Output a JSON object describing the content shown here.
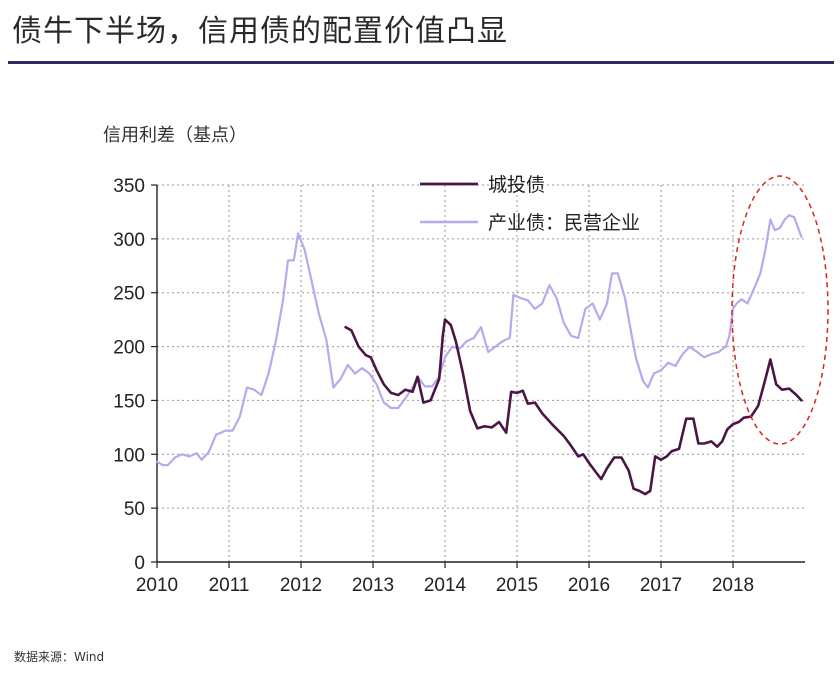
{
  "page": {
    "title": "债牛下半场，信用债的配置价值凸显",
    "source": "数据来源：Wind"
  },
  "colors": {
    "title_rule": "#2e2a64",
    "chengtou": "#4a1745",
    "private": "#b9a8ee",
    "highlight": "#d9251c",
    "grid": "#9a9a9a"
  },
  "chart_data": {
    "type": "line",
    "title": "",
    "ylabel": "信用利差（基点）",
    "xlabel": "",
    "ylim": [
      0,
      350
    ],
    "xlim": [
      2010,
      2019
    ],
    "yticks": [
      0,
      50,
      100,
      150,
      200,
      250,
      300,
      350
    ],
    "xticks": [
      "2010",
      "2011",
      "2012",
      "2013",
      "2014",
      "2015",
      "2016",
      "2017",
      "2018"
    ],
    "grid": "dotted",
    "legend_position": "top-center",
    "annotation": "dashed red ellipse highlighting 2018",
    "series": [
      {
        "name": "城投债",
        "color": "#4a1745",
        "points": [
          [
            2012.62,
            218
          ],
          [
            2012.7,
            215
          ],
          [
            2012.8,
            200
          ],
          [
            2012.9,
            192
          ],
          [
            2012.97,
            190
          ],
          [
            2013.05,
            178
          ],
          [
            2013.15,
            165
          ],
          [
            2013.25,
            157
          ],
          [
            2013.35,
            155
          ],
          [
            2013.45,
            160
          ],
          [
            2013.55,
            158
          ],
          [
            2013.62,
            172
          ],
          [
            2013.7,
            148
          ],
          [
            2013.8,
            150
          ],
          [
            2013.92,
            170
          ],
          [
            2013.97,
            210
          ],
          [
            2014.0,
            225
          ],
          [
            2014.08,
            220
          ],
          [
            2014.15,
            205
          ],
          [
            2014.25,
            175
          ],
          [
            2014.35,
            140
          ],
          [
            2014.45,
            124
          ],
          [
            2014.55,
            126
          ],
          [
            2014.65,
            125
          ],
          [
            2014.75,
            130
          ],
          [
            2014.85,
            120
          ],
          [
            2014.92,
            158
          ],
          [
            2015.0,
            157
          ],
          [
            2015.08,
            159
          ],
          [
            2015.15,
            147
          ],
          [
            2015.25,
            148
          ],
          [
            2015.35,
            138
          ],
          [
            2015.5,
            127
          ],
          [
            2015.65,
            117
          ],
          [
            2015.75,
            108
          ],
          [
            2015.85,
            98
          ],
          [
            2015.92,
            100
          ],
          [
            2016.0,
            92
          ],
          [
            2016.1,
            83
          ],
          [
            2016.17,
            77
          ],
          [
            2016.25,
            87
          ],
          [
            2016.35,
            97
          ],
          [
            2016.45,
            97
          ],
          [
            2016.55,
            85
          ],
          [
            2016.62,
            68
          ],
          [
            2016.7,
            66
          ],
          [
            2016.78,
            63
          ],
          [
            2016.85,
            66
          ],
          [
            2016.92,
            98
          ],
          [
            2017.0,
            95
          ],
          [
            2017.08,
            98
          ],
          [
            2017.15,
            103
          ],
          [
            2017.25,
            105
          ],
          [
            2017.35,
            133
          ],
          [
            2017.45,
            133
          ],
          [
            2017.52,
            110
          ],
          [
            2017.6,
            110
          ],
          [
            2017.7,
            112
          ],
          [
            2017.78,
            107
          ],
          [
            2017.85,
            112
          ],
          [
            2017.92,
            123
          ],
          [
            2018.0,
            128
          ],
          [
            2018.08,
            130
          ],
          [
            2018.15,
            134
          ],
          [
            2018.25,
            135
          ],
          [
            2018.35,
            145
          ],
          [
            2018.45,
            170
          ],
          [
            2018.52,
            188
          ],
          [
            2018.6,
            165
          ],
          [
            2018.68,
            160
          ],
          [
            2018.78,
            161
          ],
          [
            2018.88,
            155
          ],
          [
            2018.95,
            150
          ]
        ]
      },
      {
        "name": "产业债：民营企业",
        "color": "#b9a8ee",
        "points": [
          [
            2010.0,
            93
          ],
          [
            2010.08,
            90
          ],
          [
            2010.15,
            90
          ],
          [
            2010.25,
            97
          ],
          [
            2010.35,
            100
          ],
          [
            2010.45,
            98
          ],
          [
            2010.55,
            101
          ],
          [
            2010.62,
            95
          ],
          [
            2010.72,
            102
          ],
          [
            2010.82,
            118
          ],
          [
            2010.95,
            122
          ],
          [
            2011.05,
            122
          ],
          [
            2011.15,
            135
          ],
          [
            2011.25,
            162
          ],
          [
            2011.35,
            160
          ],
          [
            2011.45,
            155
          ],
          [
            2011.55,
            175
          ],
          [
            2011.65,
            205
          ],
          [
            2011.75,
            243
          ],
          [
            2011.82,
            280
          ],
          [
            2011.9,
            280
          ],
          [
            2011.96,
            305
          ],
          [
            2012.05,
            290
          ],
          [
            2012.15,
            260
          ],
          [
            2012.25,
            230
          ],
          [
            2012.35,
            207
          ],
          [
            2012.45,
            162
          ],
          [
            2012.55,
            170
          ],
          [
            2012.65,
            183
          ],
          [
            2012.75,
            175
          ],
          [
            2012.85,
            180
          ],
          [
            2012.95,
            175
          ],
          [
            2013.05,
            165
          ],
          [
            2013.15,
            148
          ],
          [
            2013.25,
            143
          ],
          [
            2013.35,
            143
          ],
          [
            2013.45,
            152
          ],
          [
            2013.55,
            162
          ],
          [
            2013.62,
            172
          ],
          [
            2013.72,
            163
          ],
          [
            2013.82,
            163
          ],
          [
            2013.92,
            172
          ],
          [
            2014.0,
            190
          ],
          [
            2014.1,
            200
          ],
          [
            2014.2,
            198
          ],
          [
            2014.3,
            205
          ],
          [
            2014.4,
            208
          ],
          [
            2014.5,
            218
          ],
          [
            2014.6,
            195
          ],
          [
            2014.7,
            200
          ],
          [
            2014.8,
            205
          ],
          [
            2014.9,
            208
          ],
          [
            2014.95,
            248
          ],
          [
            2015.05,
            245
          ],
          [
            2015.15,
            243
          ],
          [
            2015.25,
            235
          ],
          [
            2015.35,
            240
          ],
          [
            2015.45,
            257
          ],
          [
            2015.55,
            245
          ],
          [
            2015.65,
            222
          ],
          [
            2015.75,
            210
          ],
          [
            2015.85,
            208
          ],
          [
            2015.95,
            235
          ],
          [
            2016.05,
            240
          ],
          [
            2016.15,
            225
          ],
          [
            2016.25,
            240
          ],
          [
            2016.32,
            268
          ],
          [
            2016.4,
            268
          ],
          [
            2016.5,
            245
          ],
          [
            2016.58,
            215
          ],
          [
            2016.65,
            190
          ],
          [
            2016.75,
            168
          ],
          [
            2016.82,
            162
          ],
          [
            2016.9,
            175
          ],
          [
            2017.0,
            178
          ],
          [
            2017.1,
            185
          ],
          [
            2017.2,
            182
          ],
          [
            2017.3,
            193
          ],
          [
            2017.4,
            200
          ],
          [
            2017.5,
            195
          ],
          [
            2017.6,
            190
          ],
          [
            2017.7,
            193
          ],
          [
            2017.8,
            195
          ],
          [
            2017.9,
            200
          ],
          [
            2017.95,
            210
          ],
          [
            2018.0,
            235
          ],
          [
            2018.05,
            240
          ],
          [
            2018.12,
            244
          ],
          [
            2018.2,
            240
          ],
          [
            2018.3,
            255
          ],
          [
            2018.38,
            268
          ],
          [
            2018.45,
            290
          ],
          [
            2018.52,
            318
          ],
          [
            2018.58,
            308
          ],
          [
            2018.65,
            310
          ],
          [
            2018.72,
            318
          ],
          [
            2018.78,
            322
          ],
          [
            2018.85,
            320
          ],
          [
            2018.95,
            302
          ]
        ]
      }
    ]
  }
}
